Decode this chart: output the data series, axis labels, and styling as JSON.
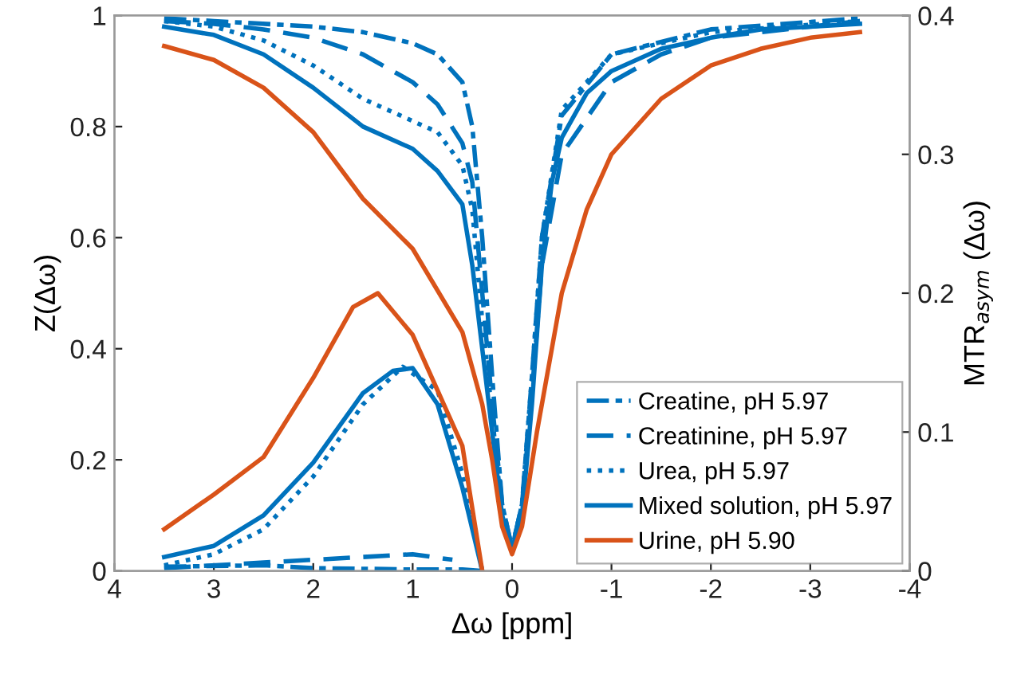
{
  "chart_data": {
    "type": "line",
    "xlabel": "Δω [ppm]",
    "ylabel": "Z(Δω)",
    "y2label": "MTR$_{asym}$ (Δω)",
    "xlim": [
      4,
      -4
    ],
    "xticks": [
      4,
      3,
      2,
      1,
      0,
      -1,
      -2,
      -3,
      -4
    ],
    "ylim": [
      0,
      1
    ],
    "yticks": [
      0,
      0.2,
      0.4,
      0.6,
      0.8,
      1
    ],
    "y2lim": [
      0,
      0.4
    ],
    "y2ticks": [
      0,
      0.1,
      0.2,
      0.3,
      0.4
    ],
    "grid": false,
    "legend": "bottom right",
    "marker": "none",
    "series": [
      {
        "name": "Creatine, pH 5.97",
        "color": "#0072bd",
        "line_style": "dashdot",
        "x": [
          3.5,
          3,
          2,
          1.5,
          1,
          0.75,
          0.5,
          0.4,
          0.3,
          0.2,
          0.1,
          0,
          -0.1,
          -0.2,
          -0.3,
          -0.5,
          -1,
          -2,
          -3.5
        ],
        "values": [
          0.995,
          0.99,
          0.98,
          0.97,
          0.95,
          0.93,
          0.88,
          0.8,
          0.6,
          0.35,
          0.12,
          0.04,
          0.12,
          0.35,
          0.6,
          0.82,
          0.93,
          0.975,
          0.995
        ]
      },
      {
        "name": "Creatinine, pH 5.97",
        "color": "#0072bd",
        "line_style": "dashed",
        "x": [
          3.5,
          3,
          2.5,
          2,
          1.5,
          1,
          0.75,
          0.5,
          0.4,
          0.3,
          0.2,
          0.1,
          0,
          -0.1,
          -0.2,
          -0.3,
          -0.5,
          -1,
          -1.5,
          -2,
          -3.5
        ],
        "values": [
          0.99,
          0.985,
          0.975,
          0.96,
          0.93,
          0.88,
          0.84,
          0.77,
          0.7,
          0.5,
          0.3,
          0.12,
          0.04,
          0.12,
          0.32,
          0.55,
          0.75,
          0.88,
          0.93,
          0.96,
          0.99
        ]
      },
      {
        "name": "Urea, pH 5.97",
        "color": "#0072bd",
        "line_style": "dotted",
        "x": [
          3.5,
          3,
          2.5,
          2,
          1.5,
          1,
          0.75,
          0.5,
          0.4,
          0.3,
          0.2,
          0.1,
          0,
          -0.1,
          -0.2,
          -0.3,
          -0.5,
          -1,
          -2,
          -3.5
        ],
        "values": [
          0.99,
          0.98,
          0.955,
          0.91,
          0.85,
          0.81,
          0.79,
          0.73,
          0.65,
          0.45,
          0.28,
          0.1,
          0.04,
          0.12,
          0.35,
          0.6,
          0.83,
          0.93,
          0.97,
          0.99
        ]
      },
      {
        "name": "Mixed solution, pH 5.97",
        "color": "#0072bd",
        "line_style": "solid",
        "x": [
          3.5,
          3,
          2.5,
          2,
          1.5,
          1,
          0.75,
          0.5,
          0.4,
          0.3,
          0.2,
          0.1,
          0,
          -0.1,
          -0.2,
          -0.3,
          -0.4,
          -0.5,
          -0.75,
          -1,
          -1.5,
          -2,
          -2.5,
          -3,
          -3.5
        ],
        "values": [
          0.98,
          0.965,
          0.93,
          0.87,
          0.8,
          0.76,
          0.72,
          0.66,
          0.55,
          0.4,
          0.25,
          0.1,
          0.04,
          0.1,
          0.3,
          0.55,
          0.7,
          0.78,
          0.86,
          0.9,
          0.94,
          0.96,
          0.975,
          0.98,
          0.985
        ]
      },
      {
        "name": "Urine, pH 5.90",
        "color": "#d95319",
        "line_style": "solid",
        "x": [
          3.5,
          3,
          2.5,
          2,
          1.5,
          1,
          0.5,
          0.3,
          0.2,
          0.1,
          0,
          -0.1,
          -0.25,
          -0.5,
          -0.75,
          -1,
          -1.5,
          -2,
          -2.5,
          -3,
          -3.5
        ],
        "values": [
          0.945,
          0.92,
          0.87,
          0.79,
          0.67,
          0.58,
          0.43,
          0.3,
          0.2,
          0.08,
          0.03,
          0.08,
          0.25,
          0.5,
          0.65,
          0.75,
          0.85,
          0.91,
          0.94,
          0.96,
          0.97
        ]
      },
      {
        "color": "#0072bd",
        "line_style": "dashdot",
        "axis": "y2",
        "x": [
          3.5,
          2.5,
          2,
          1,
          0.5,
          0.3
        ],
        "values": [
          0.003,
          0.004,
          0.002,
          0.001,
          0.001,
          0
        ]
      },
      {
        "color": "#0072bd",
        "line_style": "dashed",
        "axis": "y2",
        "x": [
          3.5,
          2.5,
          2,
          1.5,
          1,
          0.6
        ],
        "values": [
          0.002,
          0.006,
          0.008,
          0.01,
          0.012,
          0.008
        ]
      },
      {
        "color": "#0072bd",
        "line_style": "dotted",
        "axis": "y2",
        "x": [
          3.5,
          3,
          2.5,
          2,
          1.5,
          1.1,
          0.75,
          0.5,
          0.3
        ],
        "values": [
          0.004,
          0.012,
          0.03,
          0.068,
          0.12,
          0.147,
          0.13,
          0.07,
          0
        ]
      },
      {
        "color": "#0072bd",
        "line_style": "solid",
        "axis": "y2",
        "x": [
          3.5,
          3,
          2.5,
          2,
          1.5,
          1.2,
          1,
          0.75,
          0.5,
          0.3
        ],
        "values": [
          0.01,
          0.018,
          0.04,
          0.078,
          0.128,
          0.144,
          0.146,
          0.12,
          0.06,
          0
        ]
      },
      {
        "color": "#d95319",
        "line_style": "solid",
        "axis": "y2",
        "x": [
          3.5,
          3,
          2.5,
          2,
          1.6,
          1.35,
          1,
          0.75,
          0.5,
          0.3
        ],
        "values": [
          0.03,
          0.055,
          0.082,
          0.139,
          0.19,
          0.2,
          0.17,
          0.13,
          0.09,
          0
        ]
      }
    ]
  }
}
